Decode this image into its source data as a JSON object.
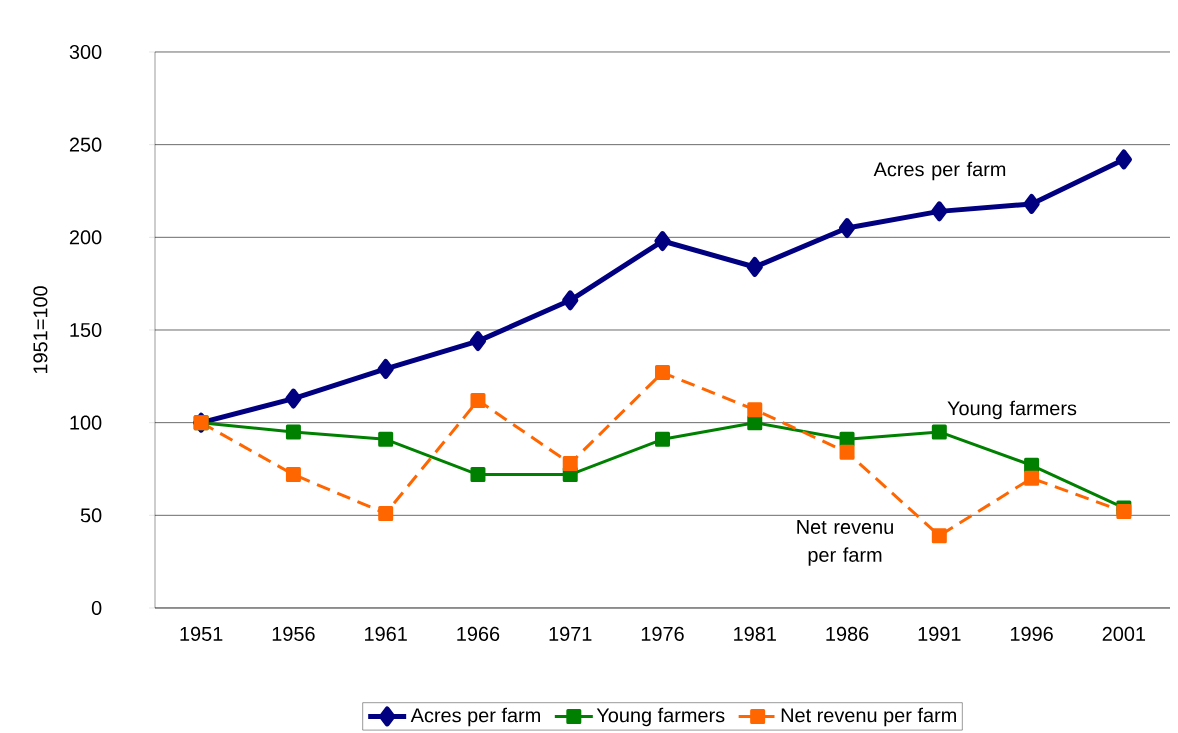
{
  "chart_data": {
    "type": "line",
    "ylabel": "1951=100",
    "categories": [
      "1951",
      "1956",
      "1961",
      "1966",
      "1971",
      "1976",
      "1981",
      "1986",
      "1991",
      "1996",
      "2001"
    ],
    "series": [
      {
        "name": "Acres per farm",
        "color": "#000080",
        "marker": "diamond",
        "line_style": "solid",
        "values": [
          100,
          113,
          129,
          144,
          166,
          198,
          184,
          205,
          214,
          218,
          242
        ]
      },
      {
        "name": "Young farmers",
        "color": "#008000",
        "marker": "square",
        "line_style": "solid",
        "values": [
          100,
          95,
          91,
          72,
          72,
          91,
          100,
          91,
          95,
          77,
          54
        ]
      },
      {
        "name": "Net revenu per farm",
        "color": "#ff6600",
        "marker": "square",
        "line_style": "dashed",
        "values": [
          100,
          72,
          51,
          112,
          78,
          127,
          107,
          84,
          39,
          70,
          52
        ]
      }
    ],
    "annotations": [
      "Acres per farm",
      "Young farmers",
      "Net revenu per farm"
    ],
    "ylim": [
      0,
      300
    ],
    "yticks": [
      0,
      50,
      100,
      150,
      200,
      250,
      300
    ],
    "grid": "y",
    "legend": "bottom"
  }
}
